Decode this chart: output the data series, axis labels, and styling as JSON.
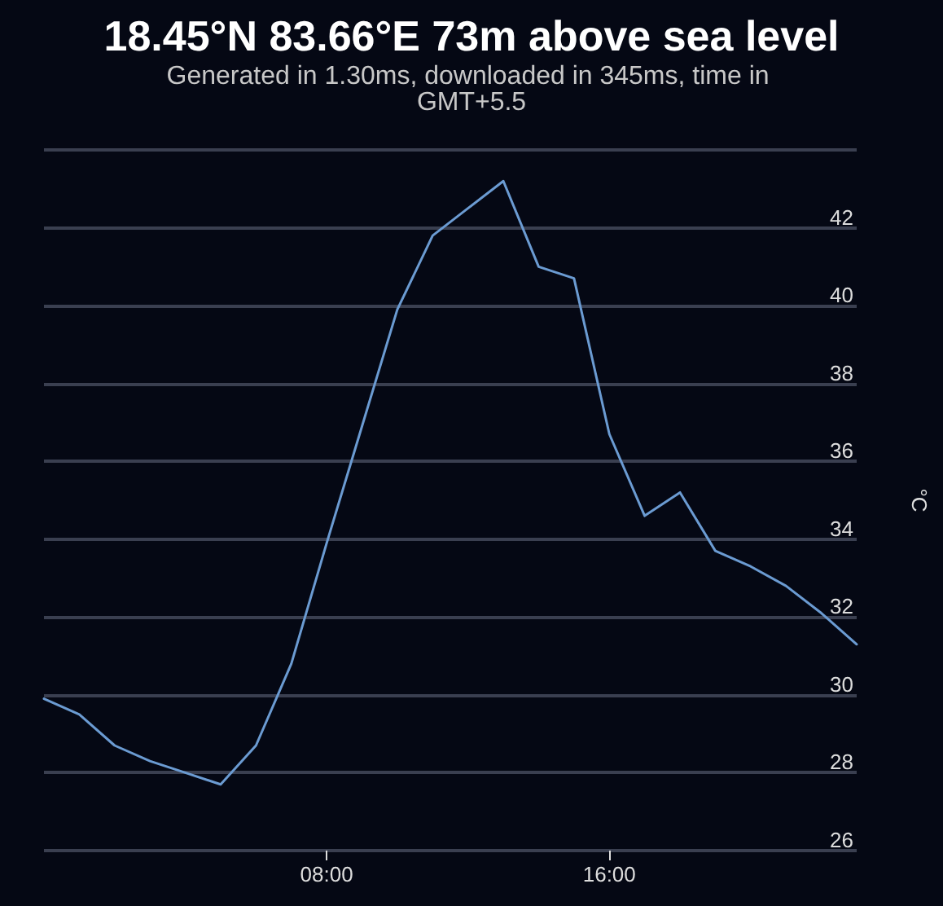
{
  "chart_data": {
    "type": "line",
    "title": "18.45°N 83.66°E 73m above sea level",
    "subtitle": "Generated in 1.30ms, downloaded in 345ms, time in GMT+5.5",
    "ylabel": "°C",
    "x": [
      0,
      1,
      2,
      3,
      4,
      5,
      6,
      7,
      8,
      9,
      10,
      11,
      12,
      13,
      14,
      15,
      16,
      17,
      18,
      19,
      20,
      21,
      22,
      23
    ],
    "series": [
      {
        "color": "#6b9bd2",
        "values": [
          29.9,
          29.5,
          28.7,
          28.3,
          28.0,
          27.7,
          28.7,
          30.8,
          33.9,
          36.9,
          39.9,
          41.8,
          42.5,
          43.2,
          41.0,
          40.7,
          36.7,
          34.6,
          35.2,
          33.7,
          33.3,
          32.8,
          32.1,
          31.3
        ]
      }
    ],
    "xlim": [
      0,
      23
    ],
    "xticks": [
      {
        "value": 8,
        "label": "08:00"
      },
      {
        "value": 16,
        "label": "16:00"
      }
    ],
    "ylim": [
      26,
      44
    ],
    "yticks": [
      26,
      28,
      30,
      32,
      34,
      36,
      38,
      40,
      42,
      {
        "value": 44,
        "label": null
      }
    ],
    "grid": "y",
    "marker": "none",
    "line_style": "solid"
  }
}
